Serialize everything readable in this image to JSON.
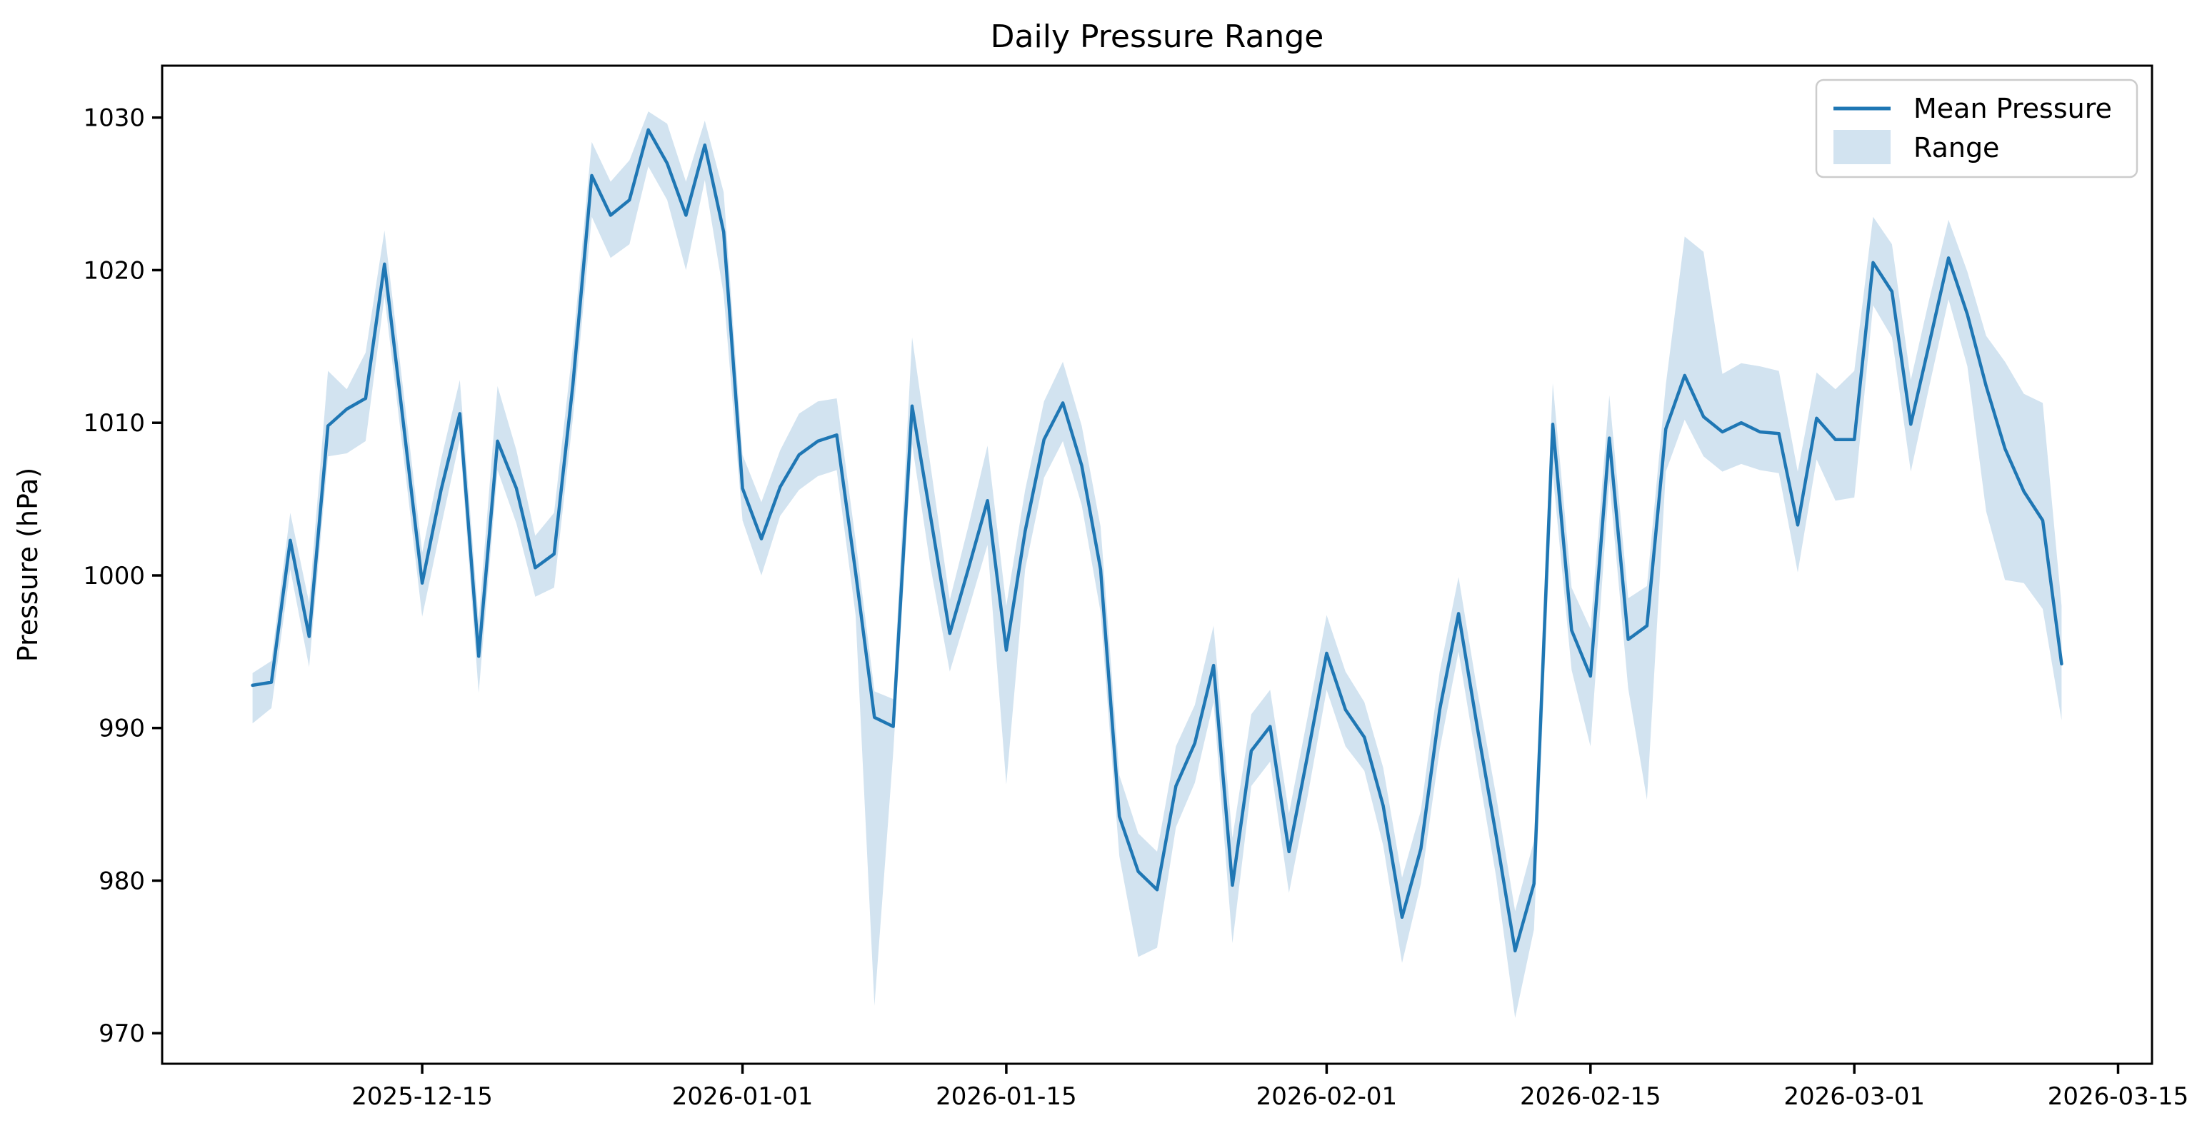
{
  "title": "Daily Pressure Range",
  "ylabel": "Pressure (hPa)",
  "legend": {
    "line_label": "Mean Pressure",
    "band_label": "Range"
  },
  "colors": {
    "line": "#1f77b4",
    "band": "#d2e3f0",
    "spine": "#000000",
    "background": "#ffffff"
  },
  "chart_data": {
    "type": "line",
    "title": "Daily Pressure Range",
    "xlabel": "",
    "ylabel": "Pressure (hPa)",
    "frequency": "daily",
    "start_date": "2025-12-06",
    "end_date": "2026-03-12",
    "legend_position": "upper right",
    "grid": false,
    "yticks": [
      970,
      980,
      990,
      1000,
      1010,
      1020,
      1030
    ],
    "xticks": [
      {
        "label": "2025-12-15",
        "index": 9
      },
      {
        "label": "2026-01-01",
        "index": 26
      },
      {
        "label": "2026-01-15",
        "index": 40
      },
      {
        "label": "2026-02-01",
        "index": 57
      },
      {
        "label": "2026-02-15",
        "index": 71
      },
      {
        "label": "2026-03-01",
        "index": 85
      },
      {
        "label": "2026-03-15",
        "index": 99
      }
    ],
    "ylim": [
      968.0,
      1033.4
    ],
    "dates": [
      "2025-12-06",
      "2025-12-07",
      "2025-12-08",
      "2025-12-09",
      "2025-12-10",
      "2025-12-11",
      "2025-12-12",
      "2025-12-13",
      "2025-12-14",
      "2025-12-15",
      "2025-12-16",
      "2025-12-17",
      "2025-12-18",
      "2025-12-19",
      "2025-12-20",
      "2025-12-21",
      "2025-12-22",
      "2025-12-23",
      "2025-12-24",
      "2025-12-25",
      "2025-12-26",
      "2025-12-27",
      "2025-12-28",
      "2025-12-29",
      "2025-12-30",
      "2025-12-31",
      "2026-01-01",
      "2026-01-02",
      "2026-01-03",
      "2026-01-04",
      "2026-01-05",
      "2026-01-06",
      "2026-01-07",
      "2026-01-08",
      "2026-01-09",
      "2026-01-10",
      "2026-01-11",
      "2026-01-12",
      "2026-01-13",
      "2026-01-14",
      "2026-01-15",
      "2026-01-16",
      "2026-01-17",
      "2026-01-18",
      "2026-01-19",
      "2026-01-20",
      "2026-01-21",
      "2026-01-22",
      "2026-01-23",
      "2026-01-24",
      "2026-01-25",
      "2026-01-26",
      "2026-01-27",
      "2026-01-28",
      "2026-01-29",
      "2026-01-30",
      "2026-01-31",
      "2026-02-01",
      "2026-02-02",
      "2026-02-03",
      "2026-02-04",
      "2026-02-05",
      "2026-02-06",
      "2026-02-07",
      "2026-02-08",
      "2026-02-09",
      "2026-02-10",
      "2026-02-11",
      "2026-02-12",
      "2026-02-13",
      "2026-02-14",
      "2026-02-15",
      "2026-02-16",
      "2026-02-17",
      "2026-02-18",
      "2026-02-19",
      "2026-02-20",
      "2026-02-21",
      "2026-02-22",
      "2026-02-23",
      "2026-02-24",
      "2026-02-25",
      "2026-02-26",
      "2026-02-27",
      "2026-02-28",
      "2026-03-01",
      "2026-03-02",
      "2026-03-03",
      "2026-03-04",
      "2026-03-05",
      "2026-03-06",
      "2026-03-07",
      "2026-03-08",
      "2026-03-09",
      "2026-03-10",
      "2026-03-11",
      "2026-03-12"
    ],
    "series": [
      {
        "name": "Mean Pressure",
        "values": [
          992.8,
          993.0,
          1002.3,
          996.0,
          1009.8,
          1010.9,
          1011.6,
          1020.4,
          1010.0,
          999.5,
          1005.6,
          1010.6,
          994.7,
          1008.8,
          1005.7,
          1000.5,
          1001.4,
          1012.5,
          1026.2,
          1023.6,
          1024.6,
          1029.2,
          1027.0,
          1023.6,
          1028.2,
          1022.5,
          1005.7,
          1002.4,
          1005.8,
          1007.9,
          1008.8,
          1009.2,
          1000.2,
          990.7,
          990.1,
          1011.1,
          1003.7,
          996.2,
          1000.5,
          1004.9,
          995.1,
          1002.9,
          1008.9,
          1011.3,
          1007.2,
          1000.4,
          984.2,
          980.6,
          979.4,
          986.2,
          989.0,
          994.1,
          979.7,
          988.5,
          990.1,
          981.9,
          988.3,
          994.9,
          991.2,
          989.4,
          984.9,
          977.6,
          982.1,
          991.2,
          997.5,
          990.0,
          982.9,
          975.4,
          979.8,
          1009.9,
          996.4,
          993.4,
          1009.0,
          995.8,
          996.7,
          1009.6,
          1013.1,
          1010.4,
          1009.4,
          1010.0,
          1009.4,
          1009.3,
          1003.3,
          1010.3,
          1008.9,
          1008.9,
          1020.5,
          1018.6,
          1009.9,
          1015.3,
          1020.8,
          1017.1,
          1012.4,
          1008.3,
          1005.5,
          1003.6,
          994.2
        ]
      },
      {
        "name": "Range low",
        "values": [
          990.3,
          991.3,
          1000.4,
          994.0,
          1007.8,
          1008.0,
          1008.8,
          1018.3,
          1007.9,
          997.3,
          1003.2,
          1008.9,
          992.3,
          1006.9,
          1003.4,
          998.6,
          999.2,
          1010.3,
          1023.5,
          1020.8,
          1021.7,
          1026.8,
          1024.6,
          1020.0,
          1025.9,
          1018.4,
          1003.6,
          1000.0,
          1003.9,
          1005.6,
          1006.5,
          1006.9,
          997.4,
          971.8,
          988.4,
          1008.6,
          1000.4,
          993.7,
          997.8,
          1002.0,
          986.3,
          1000.4,
          1006.4,
          1008.8,
          1004.6,
          997.6,
          981.6,
          975.0,
          975.6,
          983.5,
          986.4,
          991.7,
          975.9,
          986.2,
          987.8,
          979.2,
          985.6,
          992.5,
          988.8,
          987.2,
          982.3,
          974.6,
          979.8,
          988.6,
          995.0,
          987.5,
          980.2,
          971.0,
          976.8,
          1006.7,
          993.8,
          988.8,
          1006.2,
          992.6,
          985.3,
          1006.8,
          1010.2,
          1007.8,
          1006.8,
          1007.3,
          1006.9,
          1006.7,
          1000.2,
          1007.6,
          1004.9,
          1005.1,
          1017.7,
          1015.6,
          1006.8,
          1012.5,
          1018.1,
          1013.7,
          1004.2,
          999.7,
          999.5,
          997.8,
          990.5
        ]
      },
      {
        "name": "Range high",
        "values": [
          993.6,
          994.4,
          1004.1,
          998.2,
          1013.4,
          1012.2,
          1014.6,
          1022.6,
          1012.1,
          1001.5,
          1007.6,
          1012.8,
          997.0,
          1012.4,
          1008.2,
          1002.6,
          1004.1,
          1015.0,
          1028.4,
          1025.8,
          1027.2,
          1030.4,
          1029.6,
          1025.8,
          1029.8,
          1025.1,
          1007.9,
          1004.8,
          1008.2,
          1010.6,
          1011.4,
          1011.6,
          1002.3,
          992.4,
          991.9,
          1015.6,
          1007.0,
          998.4,
          1003.3,
          1008.5,
          998.0,
          1005.6,
          1011.4,
          1014.0,
          1009.8,
          1003.2,
          986.9,
          983.1,
          981.9,
          988.8,
          991.5,
          996.7,
          982.8,
          990.9,
          992.5,
          984.4,
          990.8,
          997.4,
          993.7,
          991.7,
          987.4,
          980.2,
          984.6,
          993.7,
          999.9,
          992.4,
          985.5,
          978.0,
          982.6,
          1012.6,
          999.2,
          996.5,
          1011.8,
          998.5,
          999.3,
          1012.5,
          1022.2,
          1021.2,
          1013.2,
          1013.9,
          1013.7,
          1013.4,
          1006.8,
          1013.3,
          1012.2,
          1013.4,
          1023.5,
          1021.7,
          1012.8,
          1018.2,
          1023.3,
          1019.9,
          1015.7,
          1014.0,
          1011.9,
          1011.3,
          998.0
        ]
      }
    ]
  }
}
